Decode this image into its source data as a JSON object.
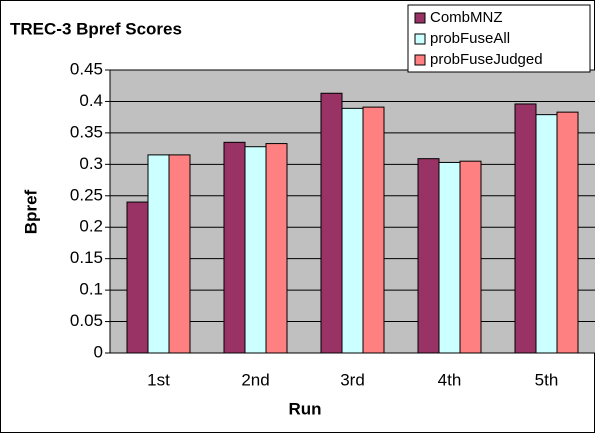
{
  "chart_data": {
    "type": "bar",
    "title": "TREC-3 Bpref Scores",
    "xlabel": "Run",
    "ylabel": "Bpref",
    "categories": [
      "1st",
      "2nd",
      "3rd",
      "4th",
      "5th"
    ],
    "series": [
      {
        "name": "CombMNZ",
        "color": "#993366",
        "values": [
          0.24,
          0.335,
          0.413,
          0.309,
          0.396
        ]
      },
      {
        "name": "probFuseAll",
        "color": "#ccffff",
        "values": [
          0.315,
          0.328,
          0.389,
          0.303,
          0.379
        ]
      },
      {
        "name": "probFuseJudged",
        "color": "#ff8080",
        "values": [
          0.315,
          0.333,
          0.391,
          0.305,
          0.383
        ]
      }
    ],
    "ylim": [
      0,
      0.45
    ],
    "yticks": [
      0,
      0.05,
      0.1,
      0.15,
      0.2,
      0.25,
      0.3,
      0.35,
      0.4,
      0.45
    ],
    "grid": true,
    "legend": "top-right"
  }
}
